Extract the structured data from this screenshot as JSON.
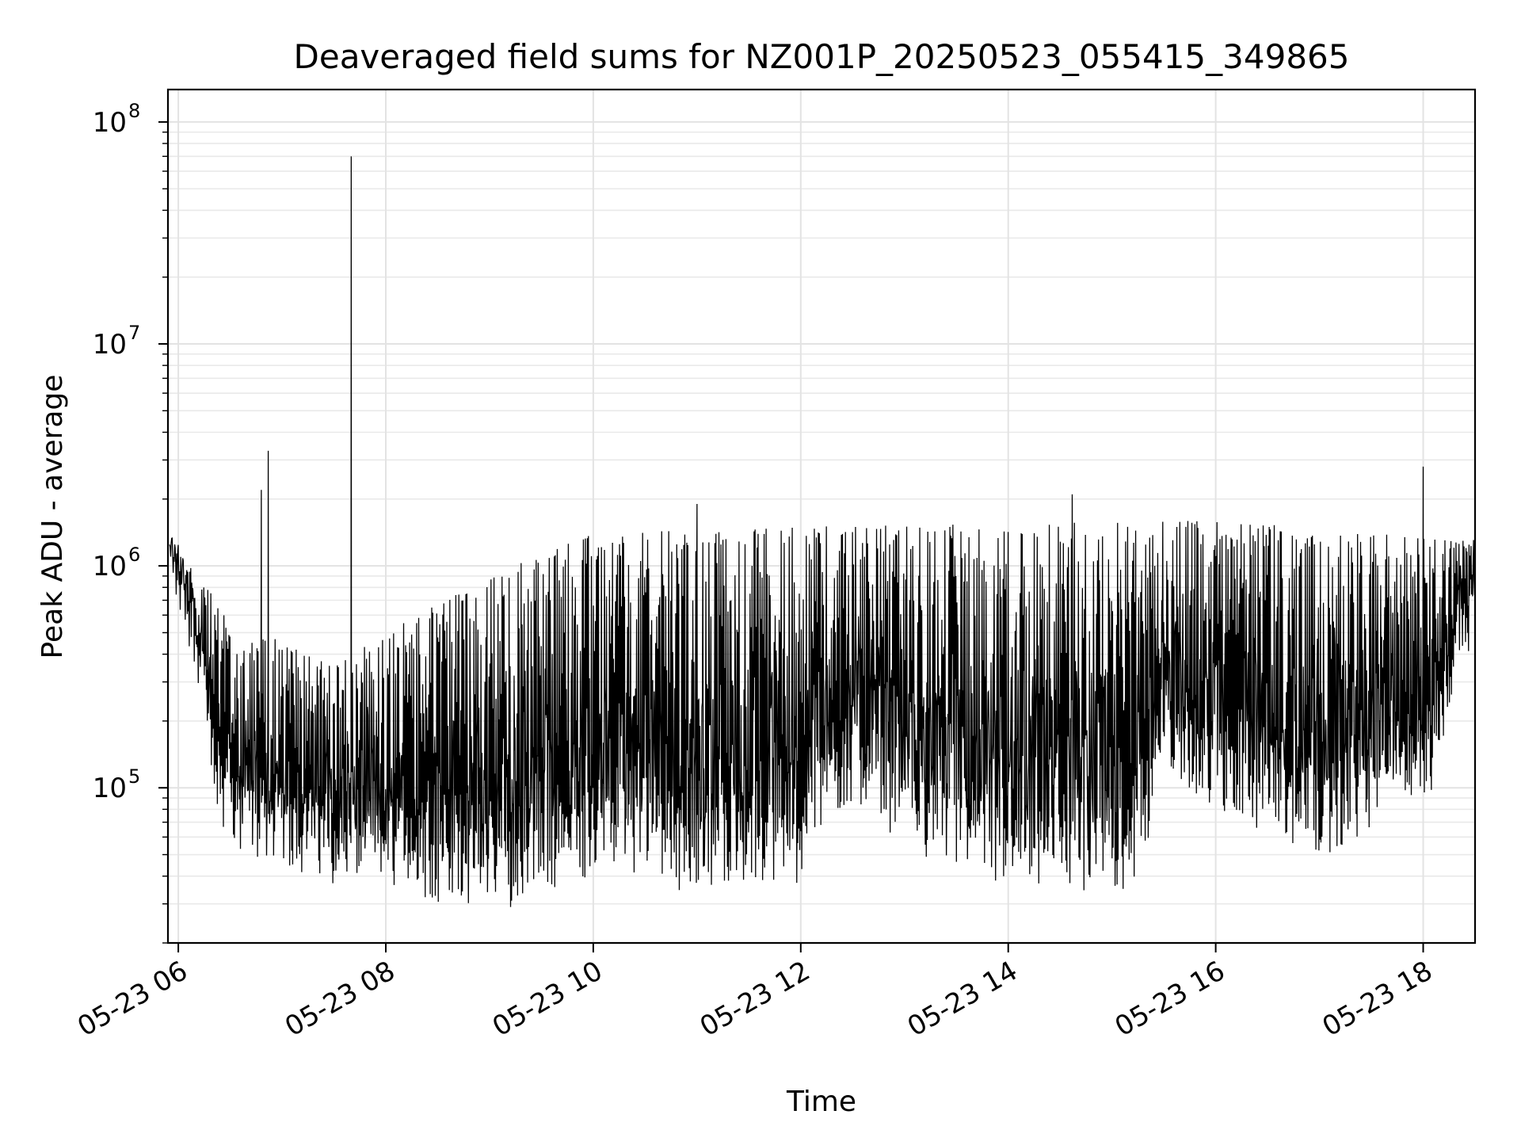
{
  "chart_data": {
    "type": "line",
    "title": "Deaveraged field sums for NZ001P_20250523_055415_349865",
    "xlabel": "Time",
    "ylabel": "Peak ADU - average",
    "yscale": "log",
    "ylim": [
      20000,
      140000000
    ],
    "xlim": [
      "2025-05-23 05:54",
      "2025-05-23 18:30"
    ],
    "grid": true,
    "line_color": "#000000",
    "x_ticks": [
      {
        "value": "2025-05-23 06:00",
        "label": "05-23 06"
      },
      {
        "value": "2025-05-23 08:00",
        "label": "05-23 08"
      },
      {
        "value": "2025-05-23 10:00",
        "label": "05-23 10"
      },
      {
        "value": "2025-05-23 12:00",
        "label": "05-23 12"
      },
      {
        "value": "2025-05-23 14:00",
        "label": "05-23 14"
      },
      {
        "value": "2025-05-23 16:00",
        "label": "05-23 16"
      },
      {
        "value": "2025-05-23 18:00",
        "label": "05-23 18"
      }
    ],
    "y_ticks": [
      {
        "value": 100000,
        "base": "10",
        "exp": "5"
      },
      {
        "value": 1000000,
        "base": "10",
        "exp": "6"
      },
      {
        "value": 10000000,
        "base": "10",
        "exp": "7"
      },
      {
        "value": 100000000,
        "base": "10",
        "exp": "8"
      }
    ],
    "series": [
      {
        "baseline_profile": [
          [
            "2025-05-23 05:55",
            1100000
          ],
          [
            "2025-05-23 06:05",
            700000
          ],
          [
            "2025-05-23 06:15",
            300000
          ],
          [
            "2025-05-23 06:20",
            100000
          ],
          [
            "2025-05-23 06:40",
            70000
          ],
          [
            "2025-05-23 07:30",
            55000
          ],
          [
            "2025-05-23 08:30",
            45000
          ],
          [
            "2025-05-23 09:10",
            42000
          ],
          [
            "2025-05-23 09:50",
            55000
          ],
          [
            "2025-05-23 10:00",
            60000
          ],
          [
            "2025-05-23 11:00",
            50000
          ],
          [
            "2025-05-23 12:00",
            55000
          ],
          [
            "2025-05-23 12:05",
            90000
          ],
          [
            "2025-05-23 12:30",
            120000
          ],
          [
            "2025-05-23 13:00",
            80000
          ],
          [
            "2025-05-23 14:00",
            50000
          ],
          [
            "2025-05-23 15:20",
            50000
          ],
          [
            "2025-05-23 15:25",
            180000
          ],
          [
            "2025-05-23 16:00",
            110000
          ],
          [
            "2025-05-23 17:00",
            70000
          ],
          [
            "2025-05-23 18:05",
            130000
          ],
          [
            "2025-05-23 18:20",
            500000
          ],
          [
            "2025-05-23 18:30",
            700000
          ]
        ],
        "peak_profile": [
          [
            "2025-05-23 05:55",
            1400000
          ],
          [
            "2025-05-23 06:10",
            900000
          ],
          [
            "2025-05-23 06:30",
            600000
          ],
          [
            "2025-05-23 07:00",
            450000
          ],
          [
            "2025-05-23 07:30",
            350000
          ],
          [
            "2025-05-23 08:00",
            500000
          ],
          [
            "2025-05-23 09:00",
            900000
          ],
          [
            "2025-05-23 10:00",
            1400000
          ],
          [
            "2025-05-23 12:00",
            1500000
          ],
          [
            "2025-05-23 14:00",
            1550000
          ],
          [
            "2025-05-23 16:00",
            1600000
          ],
          [
            "2025-05-23 18:30",
            1300000
          ]
        ],
        "spikes": [
          [
            "2025-05-23 06:48",
            2200000
          ],
          [
            "2025-05-23 06:52",
            3300000
          ],
          [
            "2025-05-23 07:40",
            70000000
          ],
          [
            "2025-05-23 11:00",
            1900000
          ],
          [
            "2025-05-23 14:37",
            2100000
          ],
          [
            "2025-05-23 18:00",
            2800000
          ]
        ]
      }
    ]
  }
}
